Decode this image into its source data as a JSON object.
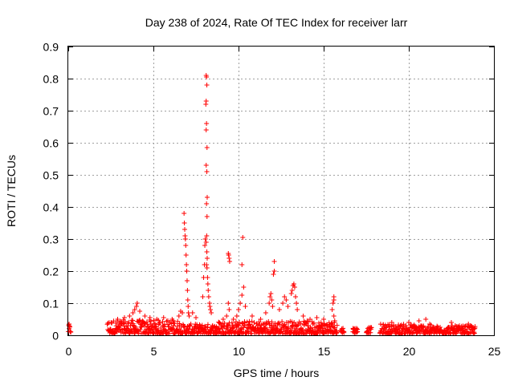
{
  "chart_data": {
    "type": "scatter",
    "title": "Day 238 of 2024, Rate Of TEC Index for receiver larr",
    "xlabel": "GPS time / hours",
    "ylabel": "ROTI / TECUs",
    "xlim": [
      0,
      25
    ],
    "ylim": [
      0,
      0.9
    ],
    "xticks": [
      0,
      5,
      10,
      15,
      20,
      25
    ],
    "yticks": [
      0,
      0.1,
      0.2,
      0.3,
      0.4,
      0.5,
      0.6,
      0.7,
      0.8,
      0.9
    ],
    "grid": true,
    "marker": "+",
    "color": "#ff0000",
    "baseline_segments": [
      {
        "x_start": 0.0,
        "x_end": 0.15,
        "y_low": 0.008,
        "y_high": 0.032
      },
      {
        "x_start": 2.3,
        "x_end": 6.6,
        "y_low": 0.005,
        "y_high": 0.048
      },
      {
        "x_start": 6.6,
        "x_end": 8.7,
        "y_low": 0.005,
        "y_high": 0.035
      },
      {
        "x_start": 8.7,
        "x_end": 15.8,
        "y_low": 0.005,
        "y_high": 0.045
      },
      {
        "x_start": 16.0,
        "x_end": 16.2,
        "y_low": 0.008,
        "y_high": 0.025
      },
      {
        "x_start": 16.7,
        "x_end": 17.0,
        "y_low": 0.008,
        "y_high": 0.025
      },
      {
        "x_start": 17.5,
        "x_end": 17.8,
        "y_low": 0.008,
        "y_high": 0.025
      },
      {
        "x_start": 18.3,
        "x_end": 21.3,
        "y_low": 0.005,
        "y_high": 0.035
      },
      {
        "x_start": 21.3,
        "x_end": 23.9,
        "y_low": 0.005,
        "y_high": 0.03
      }
    ],
    "points": [
      [
        0.05,
        0.035
      ],
      [
        0.08,
        0.028
      ],
      [
        2.9,
        0.05
      ],
      [
        3.3,
        0.055
      ],
      [
        3.6,
        0.06
      ],
      [
        3.8,
        0.07
      ],
      [
        3.9,
        0.08
      ],
      [
        4.0,
        0.09
      ],
      [
        4.05,
        0.1
      ],
      [
        4.2,
        0.075
      ],
      [
        4.5,
        0.06
      ],
      [
        4.8,
        0.055
      ],
      [
        5.2,
        0.05
      ],
      [
        5.6,
        0.055
      ],
      [
        6.1,
        0.05
      ],
      [
        6.5,
        0.06
      ],
      [
        6.6,
        0.075
      ],
      [
        6.7,
        0.07
      ],
      [
        6.8,
        0.38
      ],
      [
        6.82,
        0.35
      ],
      [
        6.84,
        0.33
      ],
      [
        6.86,
        0.31
      ],
      [
        6.88,
        0.3
      ],
      [
        6.9,
        0.28
      ],
      [
        6.92,
        0.25
      ],
      [
        6.94,
        0.22
      ],
      [
        6.96,
        0.2
      ],
      [
        6.98,
        0.17
      ],
      [
        7.0,
        0.14
      ],
      [
        7.02,
        0.11
      ],
      [
        7.04,
        0.09
      ],
      [
        7.06,
        0.07
      ],
      [
        7.1,
        0.06
      ],
      [
        7.3,
        0.07
      ],
      [
        7.5,
        0.055
      ],
      [
        7.9,
        0.12
      ],
      [
        7.95,
        0.18
      ],
      [
        8.0,
        0.22
      ],
      [
        8.02,
        0.28
      ],
      [
        8.05,
        0.3
      ],
      [
        8.1,
        0.81
      ],
      [
        8.12,
        0.805
      ],
      [
        8.14,
        0.78
      ],
      [
        8.1,
        0.73
      ],
      [
        8.08,
        0.72
      ],
      [
        8.12,
        0.66
      ],
      [
        8.1,
        0.64
      ],
      [
        8.15,
        0.585
      ],
      [
        8.1,
        0.53
      ],
      [
        8.14,
        0.51
      ],
      [
        8.16,
        0.43
      ],
      [
        8.12,
        0.41
      ],
      [
        8.15,
        0.37
      ],
      [
        8.13,
        0.31
      ],
      [
        8.1,
        0.29
      ],
      [
        8.14,
        0.26
      ],
      [
        8.16,
        0.24
      ],
      [
        8.12,
        0.22
      ],
      [
        8.15,
        0.21
      ],
      [
        8.18,
        0.18
      ],
      [
        8.2,
        0.16
      ],
      [
        8.22,
        0.14
      ],
      [
        8.25,
        0.12
      ],
      [
        8.3,
        0.1
      ],
      [
        8.32,
        0.09
      ],
      [
        8.35,
        0.08
      ],
      [
        8.4,
        0.07
      ],
      [
        9.1,
        0.05
      ],
      [
        9.3,
        0.06
      ],
      [
        9.4,
        0.255
      ],
      [
        9.42,
        0.25
      ],
      [
        9.45,
        0.24
      ],
      [
        9.48,
        0.23
      ],
      [
        9.4,
        0.1
      ],
      [
        9.45,
        0.08
      ],
      [
        9.7,
        0.05
      ],
      [
        9.9,
        0.06
      ],
      [
        10.0,
        0.08
      ],
      [
        10.1,
        0.1
      ],
      [
        10.2,
        0.125
      ],
      [
        10.25,
        0.305
      ],
      [
        10.2,
        0.22
      ],
      [
        10.3,
        0.15
      ],
      [
        10.4,
        0.09
      ],
      [
        10.8,
        0.06
      ],
      [
        11.3,
        0.05
      ],
      [
        11.6,
        0.07
      ],
      [
        11.8,
        0.1
      ],
      [
        11.85,
        0.12
      ],
      [
        11.9,
        0.13
      ],
      [
        11.95,
        0.11
      ],
      [
        12.0,
        0.09
      ],
      [
        12.05,
        0.19
      ],
      [
        12.1,
        0.2
      ],
      [
        12.1,
        0.23
      ],
      [
        12.4,
        0.08
      ],
      [
        12.6,
        0.1
      ],
      [
        12.7,
        0.12
      ],
      [
        12.8,
        0.11
      ],
      [
        12.9,
        0.09
      ],
      [
        13.1,
        0.13
      ],
      [
        13.15,
        0.14
      ],
      [
        13.2,
        0.155
      ],
      [
        13.25,
        0.16
      ],
      [
        13.3,
        0.15
      ],
      [
        13.35,
        0.12
      ],
      [
        13.4,
        0.1
      ],
      [
        13.45,
        0.08
      ],
      [
        13.8,
        0.06
      ],
      [
        14.2,
        0.05
      ],
      [
        14.6,
        0.055
      ],
      [
        15.0,
        0.05
      ],
      [
        15.6,
        0.12
      ],
      [
        15.6,
        0.11
      ],
      [
        15.55,
        0.1
      ],
      [
        15.5,
        0.08
      ],
      [
        15.6,
        0.06
      ],
      [
        15.65,
        0.045
      ],
      [
        19.0,
        0.04
      ],
      [
        20.0,
        0.04
      ],
      [
        20.6,
        0.045
      ],
      [
        21.0,
        0.05
      ],
      [
        22.5,
        0.04
      ],
      [
        23.5,
        0.035
      ]
    ]
  }
}
